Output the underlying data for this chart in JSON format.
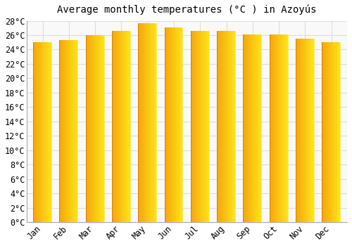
{
  "title": "Average monthly temperatures (°C ) in Azoyús",
  "months": [
    "Jan",
    "Feb",
    "Mar",
    "Apr",
    "May",
    "Jun",
    "Jul",
    "Aug",
    "Sep",
    "Oct",
    "Nov",
    "Dec"
  ],
  "values": [
    25.0,
    25.3,
    26.0,
    26.6,
    27.7,
    27.1,
    26.6,
    26.6,
    26.1,
    26.1,
    25.5,
    25.0
  ],
  "bar_color_left": "#F5A623",
  "bar_color_right": "#FFD740",
  "bar_edge_color": "#E59400",
  "ylim_min": 0,
  "ylim_max": 28,
  "ytick_step": 2,
  "background_color": "#ffffff",
  "plot_bg_color": "#f9f9f9",
  "grid_color": "#dddddd",
  "title_fontsize": 10,
  "tick_fontsize": 8.5,
  "font_family": "monospace"
}
